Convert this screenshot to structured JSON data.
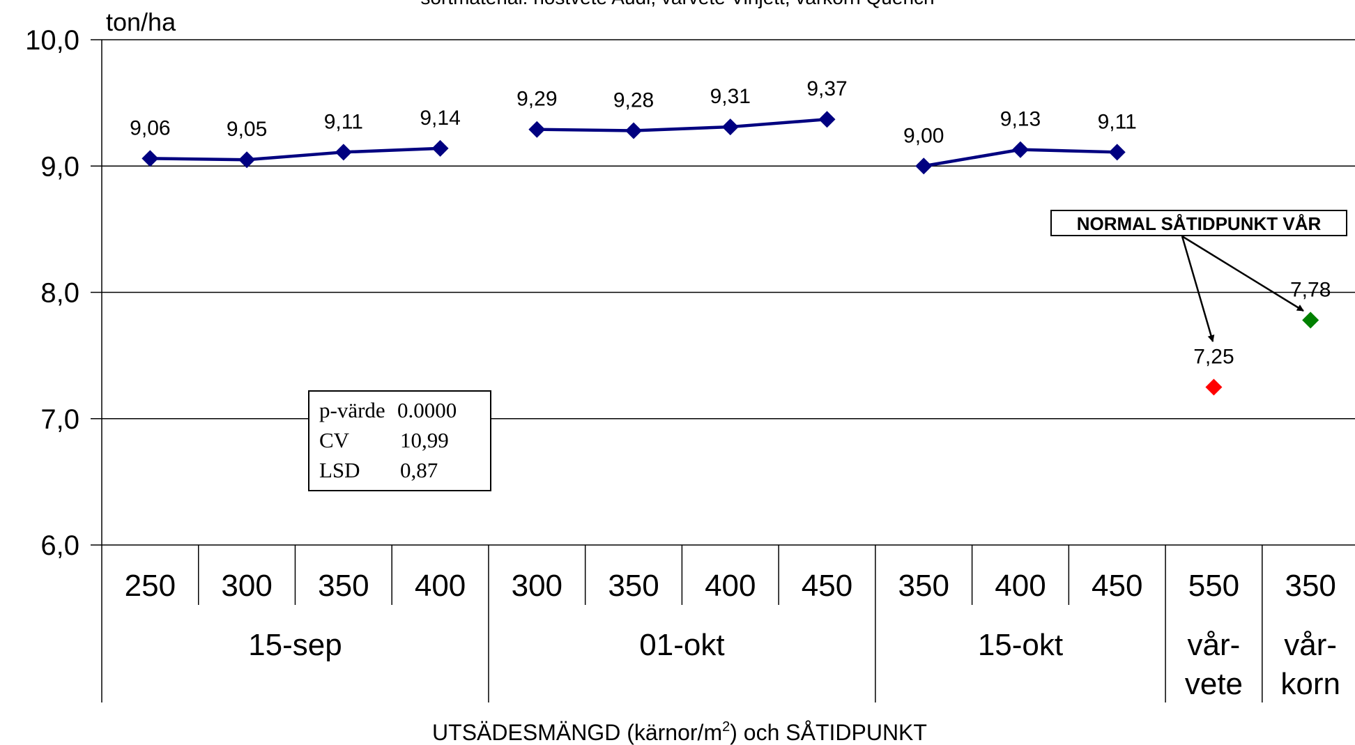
{
  "chart_data": {
    "type": "line",
    "title": "sortmaterial: höstvete Audi, vårvete Vinjett, vårkorn Quench",
    "ylabel": "ton/ha",
    "xlabel": "UTSÄDESMÄNGD (kärnor/m",
    "xlabel_sup": "2",
    "xlabel_tail": ") och SÅTIDPUNKT",
    "ylim": [
      6.0,
      10.0
    ],
    "yticks": [
      "10,0",
      "9,0",
      "8,0",
      "7,0",
      "6,0"
    ],
    "grid": true,
    "categories": [
      "250",
      "300",
      "350",
      "400",
      "300",
      "350",
      "400",
      "450",
      "350",
      "400",
      "450",
      "550",
      "350"
    ],
    "groups": [
      {
        "label": "15-sep",
        "span": 4
      },
      {
        "label": "01-okt",
        "span": 4
      },
      {
        "label": "15-okt",
        "span": 3
      },
      {
        "label": "vår-",
        "label2": "vete",
        "span": 1
      },
      {
        "label": "vår-",
        "label2": "korn",
        "span": 1
      }
    ],
    "series": [
      {
        "color": "#000080",
        "line": true,
        "points": [
          {
            "x": 0,
            "y": 9.06,
            "label": "9,06"
          },
          {
            "x": 1,
            "y": 9.05,
            "label": "9,05"
          },
          {
            "x": 2,
            "y": 9.11,
            "label": "9,11"
          },
          {
            "x": 3,
            "y": 9.14,
            "label": "9,14"
          }
        ]
      },
      {
        "color": "#000080",
        "line": true,
        "points": [
          {
            "x": 4,
            "y": 9.29,
            "label": "9,29"
          },
          {
            "x": 5,
            "y": 9.28,
            "label": "9,28"
          },
          {
            "x": 6,
            "y": 9.31,
            "label": "9,31"
          },
          {
            "x": 7,
            "y": 9.37,
            "label": "9,37"
          }
        ]
      },
      {
        "color": "#000080",
        "line": true,
        "points": [
          {
            "x": 8,
            "y": 9.0,
            "label": "9,00"
          },
          {
            "x": 9,
            "y": 9.13,
            "label": "9,13"
          },
          {
            "x": 10,
            "y": 9.11,
            "label": "9,11"
          }
        ]
      },
      {
        "color": "#ff0000",
        "line": false,
        "points": [
          {
            "x": 11,
            "y": 7.25,
            "label": "7,25"
          }
        ]
      },
      {
        "color": "#008000",
        "line": false,
        "points": [
          {
            "x": 12,
            "y": 7.78,
            "label": "7,78"
          }
        ]
      }
    ],
    "annotation": "NORMAL SÅTIDPUNKT VÅR",
    "stats": [
      {
        "label": "p-värde",
        "value": "0.0000"
      },
      {
        "label": "CV",
        "value": "10,99"
      },
      {
        "label": "LSD",
        "value": "0,87"
      }
    ]
  }
}
